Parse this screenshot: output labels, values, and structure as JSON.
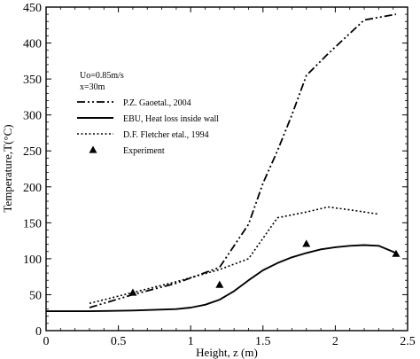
{
  "chart_data": {
    "type": "line",
    "title": "",
    "xlabel": "Height, z (m)",
    "ylabel": "Temperature,T(°C)",
    "xlim": [
      0,
      2.5
    ],
    "ylim": [
      0,
      450
    ],
    "xticks": [
      0,
      0.5,
      1,
      1.5,
      2,
      2.5
    ],
    "yticks": [
      0,
      50,
      100,
      150,
      200,
      250,
      300,
      350,
      400,
      450
    ],
    "xtick_labels": [
      "0",
      "0.5",
      "1",
      "1.5",
      "2",
      "2.5"
    ],
    "ytick_labels": [
      "0",
      "50",
      "100",
      "150",
      "200",
      "250",
      "300",
      "350",
      "400",
      "450"
    ],
    "grid": false,
    "annotations": [
      "Uo=0.85m/s",
      "x=30m"
    ],
    "legend_position": "top-left",
    "series": [
      {
        "name": "P.Z. Gaoetal., 2004",
        "style": "dash-dot-dot",
        "x": [
          0.3,
          0.6,
          0.9,
          1.2,
          1.4,
          1.5,
          1.6,
          1.7,
          1.8,
          1.95,
          2.2,
          2.42
        ],
        "y": [
          32,
          50,
          66,
          88,
          148,
          205,
          250,
          300,
          355,
          385,
          432,
          440
        ]
      },
      {
        "name": "EBU, Heat loss inside wall",
        "style": "solid",
        "x": [
          0,
          0.3,
          0.6,
          0.9,
          1.0,
          1.1,
          1.2,
          1.3,
          1.4,
          1.5,
          1.6,
          1.7,
          1.8,
          1.9,
          2.0,
          2.1,
          2.2,
          2.3,
          2.42
        ],
        "y": [
          27,
          27,
          28,
          30,
          32,
          36,
          43,
          55,
          70,
          84,
          94,
          102,
          108,
          113,
          116,
          118,
          119,
          118,
          108
        ]
      },
      {
        "name": "D.F. Fletcher etal., 1994",
        "style": "dotted",
        "x": [
          0.3,
          0.6,
          0.9,
          1.2,
          1.4,
          1.6,
          1.8,
          1.95,
          2.1,
          2.3
        ],
        "y": [
          38,
          53,
          68,
          85,
          100,
          157,
          165,
          172,
          168,
          162
        ]
      },
      {
        "name": "Experiment",
        "style": "marker-triangle",
        "x": [
          0.6,
          1.2,
          1.8,
          2.42
        ],
        "y": [
          53,
          64,
          121,
          107
        ]
      }
    ]
  }
}
